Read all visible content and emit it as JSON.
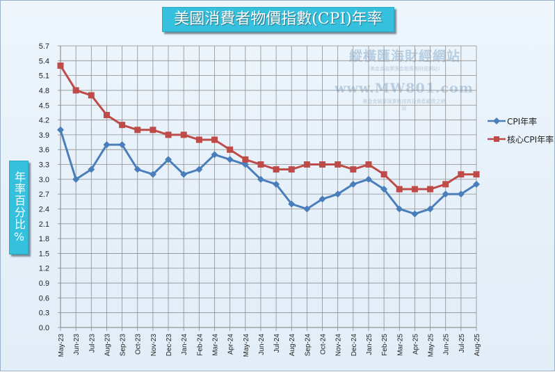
{
  "title": "美國消費者物價指數(CPI)年率",
  "ylabel": "年率百分比%",
  "watermark": {
    "name": "縱橫匯海財經網站",
    "tagline": "(美金金融業匯金股匯期財經網站)",
    "url": "www.MW801.com",
    "tagline2": "美金金融業匯業務諮詢及資產顧問之網站"
  },
  "colors": {
    "cpi": "#4a7ebb",
    "core": "#be4b48",
    "grid": "#8e8e8e",
    "panel": "#35c0dd"
  },
  "chart_data": {
    "type": "line",
    "title": "美國消費者物價指數(CPI)年率",
    "xlabel": "",
    "ylabel": "年率百分比%",
    "ylim": [
      0.0,
      5.7
    ],
    "yticks": [
      "0.0",
      "0.3",
      "0.6",
      "0.9",
      "1.2",
      "1.5",
      "1.8",
      "2.1",
      "2.4",
      "2.7",
      "3.0",
      "3.3",
      "3.6",
      "3.9",
      "4.2",
      "4.5",
      "4.8",
      "5.1",
      "5.4",
      "5.7"
    ],
    "grid": true,
    "legend_position": "right",
    "categories": [
      "May-23",
      "Jun-23",
      "Jul-23",
      "Aug-23",
      "Sep-23",
      "Oct-23",
      "Nov-23",
      "Dec-23",
      "Jan-24",
      "Feb-24",
      "Mar-24",
      "Apr-24",
      "May-24",
      "Jun-24",
      "Jul-24",
      "Aug-24",
      "Sep-24",
      "Oct-24",
      "Nov-24",
      "Dec-24",
      "Jan-25",
      "Feb-25",
      "Mar-25",
      "Apr-25",
      "May-25",
      "Jun-25",
      "Jul-25",
      "Aug-25"
    ],
    "series": [
      {
        "name": "CPI年率",
        "marker": "diamond",
        "color": "#4a7ebb",
        "values": [
          4.0,
          3.0,
          3.2,
          3.7,
          3.7,
          3.2,
          3.1,
          3.4,
          3.1,
          3.2,
          3.5,
          3.4,
          3.3,
          3.0,
          2.9,
          2.5,
          2.4,
          2.6,
          2.7,
          2.9,
          3.0,
          2.8,
          2.4,
          2.3,
          2.4,
          2.7,
          2.7,
          2.9
        ]
      },
      {
        "name": "核心CPI年率",
        "marker": "square",
        "color": "#be4b48",
        "values": [
          5.3,
          4.8,
          4.7,
          4.3,
          4.1,
          4.0,
          4.0,
          3.9,
          3.9,
          3.8,
          3.8,
          3.6,
          3.4,
          3.3,
          3.2,
          3.2,
          3.3,
          3.3,
          3.3,
          3.2,
          3.3,
          3.1,
          2.8,
          2.8,
          2.8,
          2.9,
          3.1,
          3.1
        ]
      }
    ]
  }
}
